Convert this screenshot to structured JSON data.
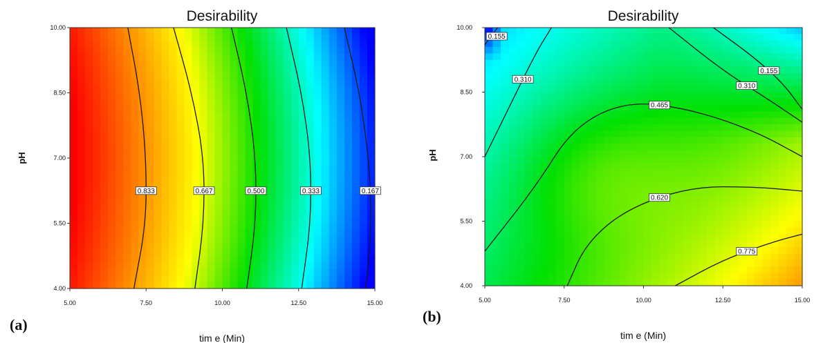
{
  "chart_data": [
    {
      "type": "heatmap",
      "panel_label": "(a)",
      "title": "Desirability",
      "xlabel": "tim e (Min)",
      "ylabel": "pH",
      "xlim": [
        5.0,
        15.0
      ],
      "ylim": [
        4.0,
        10.0
      ],
      "x_ticks": [
        "5.00",
        "7.50",
        "10.00",
        "12.50",
        "15.00"
      ],
      "y_ticks": [
        "4.00",
        "5.50",
        "7.00",
        "8.50",
        "10.00"
      ],
      "colormap": [
        "#ff0000",
        "#ff8000",
        "#ffff00",
        "#00e000",
        "#00ffff",
        "#0000ff"
      ],
      "contours": [
        {
          "label": "0.833",
          "points": [
            [
              6.9,
              10.0
            ],
            [
              7.3,
              8.5
            ],
            [
              7.5,
              7.0
            ],
            [
              7.5,
              5.5
            ],
            [
              7.1,
              4.0
            ]
          ]
        },
        {
          "label": "0.667",
          "points": [
            [
              8.4,
              10.0
            ],
            [
              9.0,
              8.5
            ],
            [
              9.4,
              7.0
            ],
            [
              9.4,
              5.5
            ],
            [
              9.1,
              4.0
            ]
          ]
        },
        {
          "label": "0.500",
          "points": [
            [
              10.3,
              10.0
            ],
            [
              10.8,
              8.5
            ],
            [
              11.1,
              7.0
            ],
            [
              11.1,
              5.5
            ],
            [
              10.8,
              4.0
            ]
          ]
        },
        {
          "label": "0.333",
          "points": [
            [
              12.1,
              10.0
            ],
            [
              12.6,
              8.5
            ],
            [
              12.9,
              7.0
            ],
            [
              12.9,
              5.5
            ],
            [
              12.6,
              4.0
            ]
          ]
        },
        {
          "label": "0.167",
          "points": [
            [
              14.0,
              10.0
            ],
            [
              14.5,
              8.5
            ],
            [
              14.8,
              7.0
            ],
            [
              14.9,
              5.5
            ],
            [
              14.7,
              4.0
            ]
          ]
        }
      ]
    },
    {
      "type": "heatmap",
      "panel_label": "(b)",
      "title": "Desirability",
      "xlabel": "tim e (Min)",
      "ylabel": "pH",
      "xlim": [
        5.0,
        15.0
      ],
      "ylim": [
        4.0,
        10.0
      ],
      "x_ticks": [
        "5.00",
        "7.50",
        "10.00",
        "12.50",
        "15.00"
      ],
      "y_ticks": [
        "4.00",
        "5.50",
        "7.00",
        "8.50",
        "10.00"
      ],
      "colormap": [
        "#0000ff",
        "#00ffff",
        "#00e000",
        "#ffff00",
        "#ff0000"
      ],
      "contours": [
        {
          "label": "0.155",
          "points": [
            [
              5.0,
              9.6
            ],
            [
              5.4,
              10.0
            ]
          ]
        },
        {
          "label": "0.310",
          "points": [
            [
              5.0,
              7.0
            ],
            [
              5.8,
              8.2
            ],
            [
              6.6,
              9.4
            ],
            [
              7.1,
              10.0
            ]
          ]
        },
        {
          "label": "0.465",
          "points": [
            [
              5.0,
              4.8
            ],
            [
              6.6,
              6.3
            ],
            [
              7.8,
              7.7
            ],
            [
              9.5,
              8.3
            ],
            [
              11.5,
              8.1
            ],
            [
              13.5,
              7.6
            ],
            [
              15.0,
              7.0
            ]
          ]
        },
        {
          "label": "0.620",
          "points": [
            [
              7.6,
              4.0
            ],
            [
              8.2,
              5.0
            ],
            [
              9.5,
              5.8
            ],
            [
              11.5,
              6.3
            ],
            [
              13.5,
              6.3
            ],
            [
              15.0,
              6.2
            ]
          ]
        },
        {
          "label": "0.775",
          "points": [
            [
              11.0,
              4.0
            ],
            [
              12.5,
              4.6
            ],
            [
              14.0,
              5.0
            ],
            [
              15.0,
              5.2
            ]
          ]
        },
        {
          "label": "0.310",
          "points": [
            [
              10.8,
              10.0
            ],
            [
              12.5,
              9.0
            ],
            [
              14.0,
              8.3
            ],
            [
              15.0,
              7.8
            ]
          ]
        },
        {
          "label": "0.155",
          "points": [
            [
              12.2,
              10.0
            ],
            [
              13.5,
              9.3
            ],
            [
              14.4,
              8.7
            ],
            [
              15.0,
              8.1
            ]
          ]
        }
      ]
    }
  ]
}
